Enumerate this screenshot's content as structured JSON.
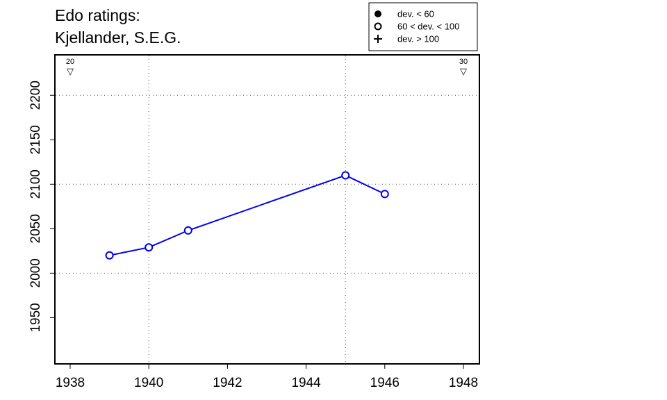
{
  "chart_data": {
    "type": "line",
    "title_lines": [
      "Edo ratings:",
      "Kjellander, S.E.G."
    ],
    "xlabel": "",
    "ylabel": "",
    "xlim": [
      1938,
      1948
    ],
    "ylim": [
      1905,
      2240
    ],
    "x_ticks": [
      1938,
      1940,
      1942,
      1944,
      1946,
      1948
    ],
    "y_ticks": [
      1950,
      2000,
      2050,
      2100,
      2150,
      2200
    ],
    "x_gridlines": [
      1940,
      1945
    ],
    "y_gridlines": [
      2000,
      2100,
      2200
    ],
    "series": [
      {
        "color": "#0000ee",
        "marker": "open-circle",
        "points": [
          {
            "x": 1939,
            "y": 2020
          },
          {
            "x": 1940,
            "y": 2029
          },
          {
            "x": 1941,
            "y": 2048
          },
          {
            "x": 1945,
            "y": 2110
          },
          {
            "x": 1946,
            "y": 2089
          }
        ]
      }
    ],
    "top_markers": [
      {
        "x": 1938,
        "label": "20",
        "symbol": "▽"
      },
      {
        "x": 1948,
        "label": "30",
        "symbol": "▽"
      }
    ],
    "legend": {
      "position": "top-right",
      "entries": [
        {
          "symbol": "filled-circle",
          "label": "dev. < 60"
        },
        {
          "symbol": "open-circle",
          "label": "60 < dev. < 100"
        },
        {
          "symbol": "plus",
          "label": "dev. > 100"
        }
      ]
    }
  }
}
